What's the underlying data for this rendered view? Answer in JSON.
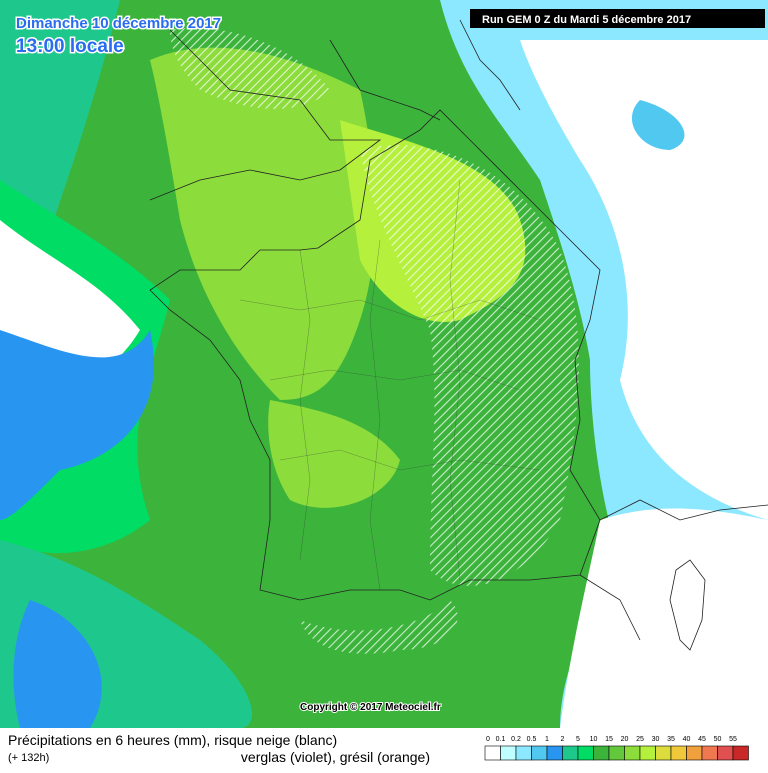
{
  "header": {
    "date": "Dimanche 10 décembre 2017",
    "time": "13:00 locale",
    "run": "Run GEM 0 Z du Mardi 5 décembre 2017"
  },
  "copyright": "Copyright © 2017 Meteociel.fr",
  "caption": {
    "line1": "Précipitations en 6 heures (mm), risque neige (blanc)",
    "lead": "(+ 132h)",
    "line2": "verglas (violet), grésil (orange)"
  },
  "legend": {
    "items": [
      {
        "label": "0",
        "color": "#ffffff"
      },
      {
        "label": "0.1",
        "color": "#c0ffff"
      },
      {
        "label": "0.2",
        "color": "#8ce8ff"
      },
      {
        "label": "0.5",
        "color": "#50c8f0"
      },
      {
        "label": "1",
        "color": "#2896f0"
      },
      {
        "label": "2",
        "color": "#1ec88c"
      },
      {
        "label": "5",
        "color": "#00dc64"
      },
      {
        "label": "10",
        "color": "#3cb43c"
      },
      {
        "label": "15",
        "color": "#64c83c"
      },
      {
        "label": "20",
        "color": "#8cdc3c"
      },
      {
        "label": "25",
        "color": "#b4f03c"
      },
      {
        "label": "30",
        "color": "#dcdc3c"
      },
      {
        "label": "35",
        "color": "#f0c83c"
      },
      {
        "label": "40",
        "color": "#f0a03c"
      },
      {
        "label": "45",
        "color": "#f07850"
      },
      {
        "label": "50",
        "color": "#e05050"
      },
      {
        "label": "55",
        "color": "#c82828"
      }
    ]
  }
}
